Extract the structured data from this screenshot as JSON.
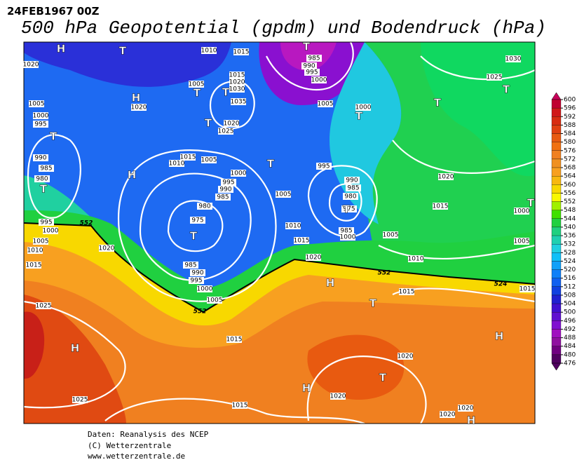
{
  "header": {
    "date": "24FEB1967 00Z",
    "title": "500 hPa Geopotential (gpdm) und Bodendruck (hPa)"
  },
  "footer": {
    "source": "Daten: Reanalysis des NCEP",
    "copyright": "(C) Wetterzentrale",
    "url": "www.wetterzentrale.de"
  },
  "colorbar": {
    "levels": [
      600,
      596,
      592,
      588,
      584,
      580,
      576,
      572,
      568,
      564,
      560,
      556,
      552,
      548,
      544,
      540,
      536,
      532,
      528,
      524,
      520,
      516,
      512,
      508,
      504,
      500,
      496,
      492,
      488,
      484,
      480,
      476
    ],
    "colors": [
      "#c8005a",
      "#c00030",
      "#d01818",
      "#d82c10",
      "#e04010",
      "#e85a10",
      "#f07010",
      "#f08020",
      "#f09020",
      "#f8a020",
      "#f8b810",
      "#f8d800",
      "#f8f800",
      "#a0f000",
      "#40e000",
      "#20d040",
      "#20d080",
      "#20d0b0",
      "#20d0e0",
      "#10c0f8",
      "#10a0f8",
      "#1080f8",
      "#1060f0",
      "#1040e0",
      "#2020d0",
      "#4010d0",
      "#6010d0",
      "#8010d0",
      "#a010c0",
      "#9010a0",
      "#700080",
      "#500060"
    ]
  },
  "isobar_labels": [
    "1010",
    "1015",
    "985",
    "990",
    "995",
    "1000",
    "1005",
    "1015",
    "1020",
    "1030",
    "1035",
    "1020",
    "1020",
    "1025",
    "1005",
    "1000",
    "995",
    "990",
    "985",
    "980",
    "1015",
    "1010",
    "1005",
    "1000",
    "995",
    "990",
    "985",
    "980",
    "975",
    "985",
    "990",
    "995",
    "1000",
    "1005",
    "1015",
    "1025",
    "1025",
    "1015",
    "1020",
    "1010",
    "1005",
    "1000",
    "995",
    "1015",
    "1005",
    "1010",
    "1015",
    "1020",
    "995",
    "990",
    "985",
    "980",
    "975",
    "985",
    "1000",
    "1005",
    "1010",
    "1015",
    "1020",
    "1020",
    "1020",
    "1020",
    "1015",
    "1020",
    "1000",
    "1005",
    "1015",
    "1025",
    "1030",
    "1005",
    "1000",
    "1020"
  ],
  "contour_labels": [
    "552",
    "552",
    "552",
    "524"
  ],
  "pressure_centers": [
    "H",
    "T",
    "T",
    "T",
    "H",
    "T",
    "T",
    "T",
    "T",
    "H",
    "T",
    "T",
    "T",
    "T",
    "T",
    "T",
    "H",
    "T",
    "H",
    "H",
    "H",
    "T",
    "H",
    "T"
  ]
}
